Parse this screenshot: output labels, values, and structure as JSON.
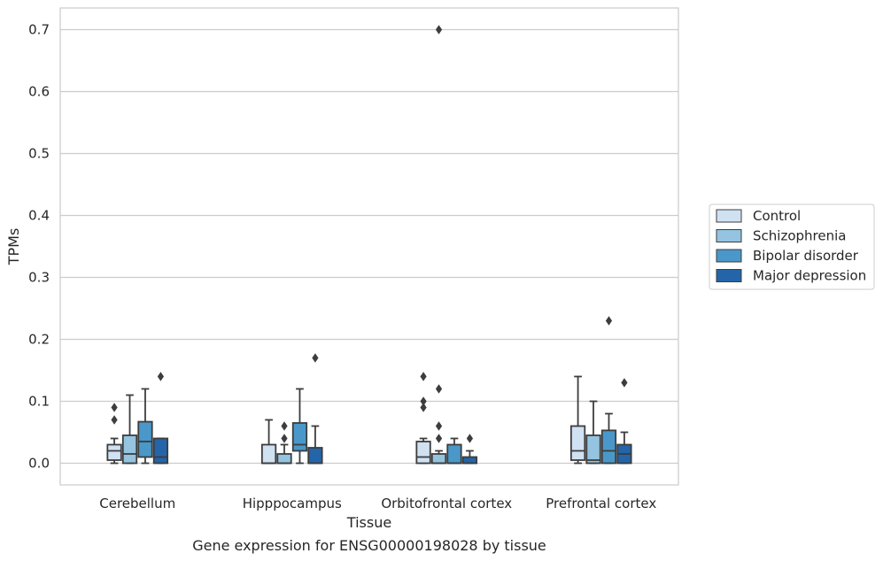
{
  "chart_data": {
    "type": "box",
    "title": "",
    "caption": "Gene expression for ENSG00000198028 by tissue",
    "xlabel": "Tissue",
    "ylabel": "TPMs",
    "ylim": [
      -0.035,
      0.735
    ],
    "yticks": [
      0.0,
      0.1,
      0.2,
      0.3,
      0.4,
      0.5,
      0.6,
      0.7
    ],
    "ytick_labels": [
      "0.0",
      "0.1",
      "0.2",
      "0.3",
      "0.4",
      "0.5",
      "0.6",
      "0.7"
    ],
    "grid": "horizontal",
    "legend_position": "right",
    "categories": [
      "Cerebellum",
      "Hipppocampus",
      "Orbitofrontal cortex",
      "Prefrontal cortex"
    ],
    "series": [
      {
        "name": "Control",
        "color": "#d0e1f2",
        "boxes": [
          {
            "whislo": 0.0,
            "q1": 0.005,
            "med": 0.02,
            "q3": 0.03,
            "whishi": 0.04,
            "fliers": [
              0.07,
              0.09
            ]
          },
          {
            "whislo": 0.0,
            "q1": 0.0,
            "med": 0.0,
            "q3": 0.03,
            "whishi": 0.07,
            "fliers": []
          },
          {
            "whislo": 0.0,
            "q1": 0.0,
            "med": 0.01,
            "q3": 0.035,
            "whishi": 0.04,
            "fliers": [
              0.09,
              0.1,
              0.14
            ]
          },
          {
            "whislo": 0.0,
            "q1": 0.005,
            "med": 0.02,
            "q3": 0.06,
            "whishi": 0.14,
            "fliers": []
          }
        ]
      },
      {
        "name": "Schizophrenia",
        "color": "#94c4df",
        "boxes": [
          {
            "whislo": 0.0,
            "q1": 0.0,
            "med": 0.015,
            "q3": 0.045,
            "whishi": 0.11,
            "fliers": []
          },
          {
            "whislo": 0.0,
            "q1": 0.0,
            "med": 0.0,
            "q3": 0.015,
            "whishi": 0.03,
            "fliers": [
              0.04,
              0.06
            ]
          },
          {
            "whislo": 0.0,
            "q1": 0.0,
            "med": 0.0,
            "q3": 0.015,
            "whishi": 0.02,
            "fliers": [
              0.04,
              0.06,
              0.12,
              0.7
            ]
          },
          {
            "whislo": 0.0,
            "q1": 0.0,
            "med": 0.005,
            "q3": 0.045,
            "whishi": 0.1,
            "fliers": []
          }
        ]
      },
      {
        "name": "Bipolar disorder",
        "color": "#4a98c9",
        "boxes": [
          {
            "whislo": 0.0,
            "q1": 0.01,
            "med": 0.035,
            "q3": 0.067,
            "whishi": 0.12,
            "fliers": []
          },
          {
            "whislo": 0.0,
            "q1": 0.02,
            "med": 0.03,
            "q3": 0.065,
            "whishi": 0.12,
            "fliers": []
          },
          {
            "whislo": 0.0,
            "q1": 0.0,
            "med": 0.0,
            "q3": 0.03,
            "whishi": 0.04,
            "fliers": []
          },
          {
            "whislo": 0.0,
            "q1": 0.0,
            "med": 0.02,
            "q3": 0.053,
            "whishi": 0.08,
            "fliers": [
              0.23
            ]
          }
        ]
      },
      {
        "name": "Major depression",
        "color": "#2465a9",
        "boxes": [
          {
            "whislo": 0.0,
            "q1": 0.0,
            "med": 0.01,
            "q3": 0.04,
            "whishi": 0.04,
            "fliers": [
              0.14
            ]
          },
          {
            "whislo": 0.0,
            "q1": 0.0,
            "med": 0.0,
            "q3": 0.025,
            "whishi": 0.06,
            "fliers": [
              0.17
            ]
          },
          {
            "whislo": 0.0,
            "q1": 0.0,
            "med": 0.0,
            "q3": 0.01,
            "whishi": 0.02,
            "fliers": [
              0.04
            ]
          },
          {
            "whislo": 0.0,
            "q1": 0.0,
            "med": 0.015,
            "q3": 0.03,
            "whishi": 0.05,
            "fliers": [
              0.13
            ]
          }
        ]
      }
    ]
  }
}
